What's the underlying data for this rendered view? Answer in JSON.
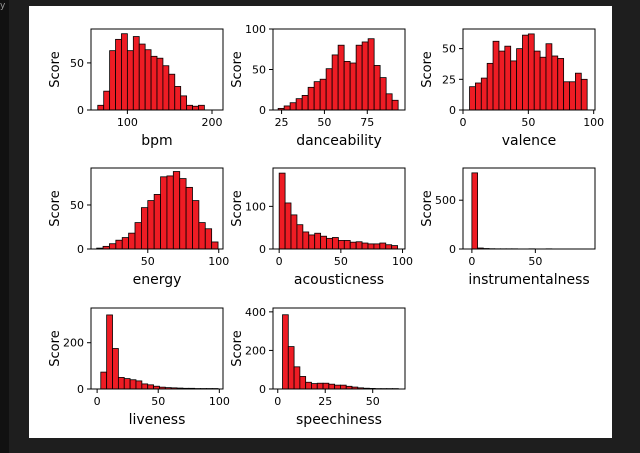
{
  "window": {
    "corner_glyph": "y"
  },
  "colors": {
    "bar_fill": "#ee1c24",
    "bar_edge": "#000000",
    "background": "#1e1e1e",
    "figure_bg": "#ffffff"
  },
  "chart_data": [
    {
      "type": "bar",
      "xlabel": "bpm",
      "ylabel": "Score",
      "xlim": [
        57,
        213
      ],
      "ylim": [
        0,
        86
      ],
      "xticks": [
        100,
        200
      ],
      "yticks": [
        0,
        50
      ],
      "bin_start": 65,
      "bin_width": 7,
      "values": [
        5,
        20,
        63,
        75,
        81,
        63,
        78,
        70,
        64,
        57,
        55,
        47,
        38,
        25,
        15,
        5,
        4,
        5
      ]
    },
    {
      "type": "bar",
      "xlabel": "danceability",
      "ylabel": "Score",
      "xlim": [
        20,
        97
      ],
      "ylim": [
        0,
        100
      ],
      "xticks": [
        25,
        50,
        75
      ],
      "yticks": [
        0,
        50,
        100
      ],
      "bin_start": 23,
      "bin_width": 3.5,
      "values": [
        2,
        5,
        9,
        14,
        18,
        28,
        35,
        38,
        51,
        68,
        80,
        60,
        58,
        80,
        84,
        88,
        55,
        40,
        20,
        12
      ]
    },
    {
      "type": "bar",
      "xlabel": "valence",
      "ylabel": "Score",
      "xlim": [
        0,
        101
      ],
      "ylim": [
        0,
        66
      ],
      "xticks": [
        0,
        50,
        100
      ],
      "yticks": [
        0,
        25,
        50
      ],
      "bin_start": 5,
      "bin_width": 4.5,
      "values": [
        19,
        22,
        26,
        38,
        56,
        48,
        52,
        40,
        50,
        61,
        62,
        48,
        43,
        54,
        44,
        42,
        23,
        23,
        30,
        25
      ]
    },
    {
      "type": "bar",
      "xlabel": "energy",
      "ylabel": "Score",
      "xlim": [
        10,
        103
      ],
      "ylim": [
        0,
        92
      ],
      "xticks": [
        50,
        100
      ],
      "yticks": [
        0,
        50
      ],
      "bin_start": 14,
      "bin_width": 4.5,
      "values": [
        1,
        3,
        6,
        10,
        13,
        18,
        30,
        47,
        55,
        62,
        82,
        83,
        88,
        80,
        70,
        55,
        30,
        23,
        8
      ]
    },
    {
      "type": "bar",
      "xlabel": "acousticness",
      "ylabel": "Score",
      "xlim": [
        -5,
        102
      ],
      "ylim": [
        0,
        190
      ],
      "xticks": [
        0,
        50,
        100
      ],
      "yticks": [
        0,
        100
      ],
      "bin_start": 0,
      "bin_width": 4.8,
      "values": [
        178,
        108,
        80,
        57,
        40,
        33,
        37,
        30,
        25,
        27,
        20,
        20,
        16,
        17,
        14,
        12,
        12,
        14,
        10,
        8
      ]
    },
    {
      "type": "bar",
      "xlabel": "instrumentalness",
      "ylabel": "Score",
      "xlim": [
        -7,
        97
      ],
      "ylim": [
        0,
        830
      ],
      "xticks": [
        0,
        50
      ],
      "yticks": [
        0,
        500
      ],
      "bin_start": 0,
      "bin_width": 4.5,
      "values": [
        780,
        10,
        5,
        3,
        2,
        2,
        2,
        2,
        1,
        1,
        2,
        1,
        1,
        2,
        1,
        1,
        1,
        1,
        1,
        1
      ]
    },
    {
      "type": "bar",
      "xlabel": "liveness",
      "ylabel": "Score",
      "xlim": [
        -5,
        103
      ],
      "ylim": [
        0,
        350
      ],
      "xticks": [
        0,
        50,
        100
      ],
      "yticks": [
        0,
        200
      ],
      "bin_start": 3,
      "bin_width": 4.8,
      "values": [
        73,
        320,
        175,
        50,
        45,
        40,
        35,
        22,
        18,
        12,
        8,
        6,
        5,
        4,
        3,
        3,
        2,
        2,
        2,
        2
      ]
    },
    {
      "type": "bar",
      "xlabel": "speechiness",
      "ylabel": "Score",
      "xlim": [
        -2.5,
        67
      ],
      "ylim": [
        0,
        420
      ],
      "xticks": [
        0,
        25,
        50
      ],
      "yticks": [
        0,
        200,
        400
      ],
      "bin_start": 2.5,
      "bin_width": 3.05,
      "values": [
        385,
        220,
        115,
        65,
        35,
        28,
        30,
        30,
        25,
        20,
        20,
        14,
        10,
        6,
        4,
        3,
        2,
        2,
        2,
        2
      ]
    }
  ]
}
